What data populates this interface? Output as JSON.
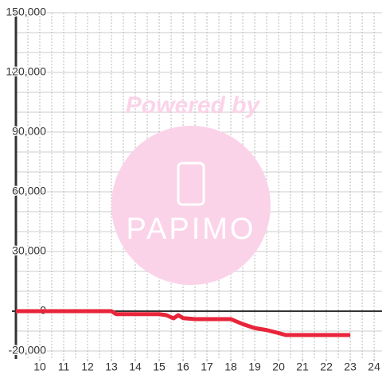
{
  "chart_data": {
    "type": "line",
    "watermark": {
      "text": "Powered by",
      "logo": "PAPIMO"
    },
    "xlim": [
      9,
      24.33
    ],
    "ylim": [
      -24000,
      150000
    ],
    "xticks": [
      10,
      11,
      12,
      13,
      14,
      15,
      16,
      17,
      18,
      19,
      20,
      21,
      22,
      23,
      24
    ],
    "xgrid": [
      9.5,
      10,
      10.5,
      11,
      11.5,
      12,
      12.5,
      13,
      13.5,
      14,
      14.5,
      15,
      15.5,
      16,
      16.5,
      17,
      17.5,
      18,
      18.5,
      19,
      19.5,
      20,
      20.5,
      21,
      21.5,
      22,
      22.5,
      23,
      23.5,
      24
    ],
    "yticks": [
      {
        "value": -20000,
        "label": "-20,000"
      },
      0,
      {
        "value": 30000,
        "label": "30,000"
      },
      {
        "value": 60000,
        "label": "60,000"
      },
      {
        "value": 90000,
        "label": "90,000"
      },
      {
        "value": 120000,
        "label": "120,000"
      },
      {
        "value": 150000,
        "label": "150,000"
      }
    ],
    "ygrid": [
      -20000,
      -10000,
      10000,
      20000,
      30000,
      40000,
      50000,
      60000,
      70000,
      80000,
      90000,
      100000,
      110000,
      120000,
      130000,
      140000,
      150000
    ],
    "grid": true,
    "series": [
      {
        "color": "#e8253a",
        "x": [
          9,
          13,
          13.2,
          14,
          15,
          15.3,
          15.6,
          15.8,
          16,
          16.5,
          17,
          18,
          18.5,
          19,
          19.5,
          20,
          20.3,
          21,
          22,
          23
        ],
        "values": [
          0,
          0,
          -1500,
          -1500,
          -1500,
          -2000,
          -3600,
          -2000,
          -3500,
          -4000,
          -4000,
          -4000,
          -6500,
          -8500,
          -9500,
          -11000,
          -12000,
          -12000,
          -12000,
          -12000
        ]
      }
    ]
  }
}
